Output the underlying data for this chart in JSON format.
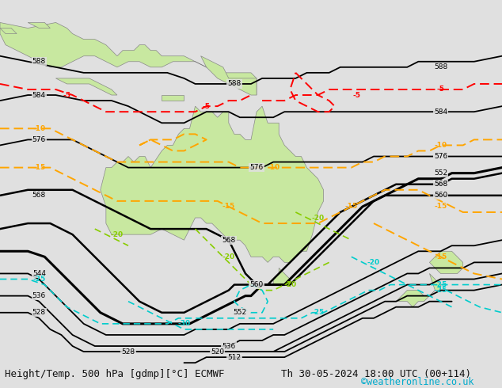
{
  "bg_color": "#e0e0e0",
  "land_color": "#c8e8a0",
  "land_edge_color": "#888888",
  "title_left": "Height/Temp. 500 hPa [gdmp][°C] ECMWF",
  "title_right": "Th 30-05-2024 18:00 UTC (00+114)",
  "credit": "©weatheronline.co.uk",
  "credit_color": "#00aacc",
  "text_color": "#111111",
  "font_size_title": 9.0,
  "font_size_credit": 8.5,
  "fig_width": 6.34,
  "fig_height": 4.9,
  "dpi": 100,
  "lon_min": 95,
  "lon_max": 185,
  "lat_min": -58,
  "lat_max": 8
}
